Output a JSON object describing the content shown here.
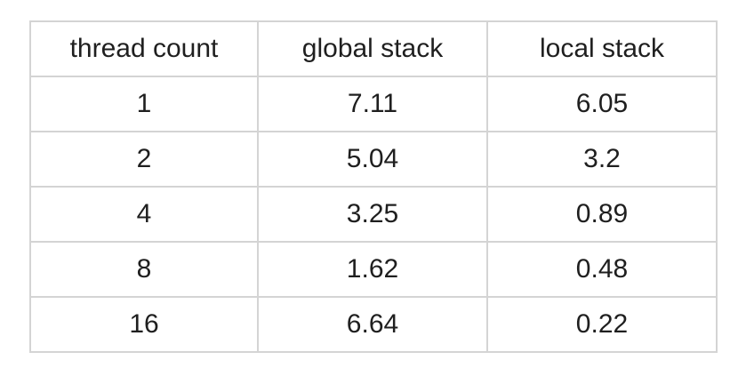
{
  "table": {
    "headers": [
      "thread count",
      "global stack",
      "local stack"
    ],
    "rows": [
      [
        "1",
        "7.11",
        "6.05"
      ],
      [
        "2",
        "5.04",
        "3.2"
      ],
      [
        "4",
        "3.25",
        "0.89"
      ],
      [
        "8",
        "1.62",
        "0.48"
      ],
      [
        "16",
        "6.64",
        "0.22"
      ]
    ]
  }
}
